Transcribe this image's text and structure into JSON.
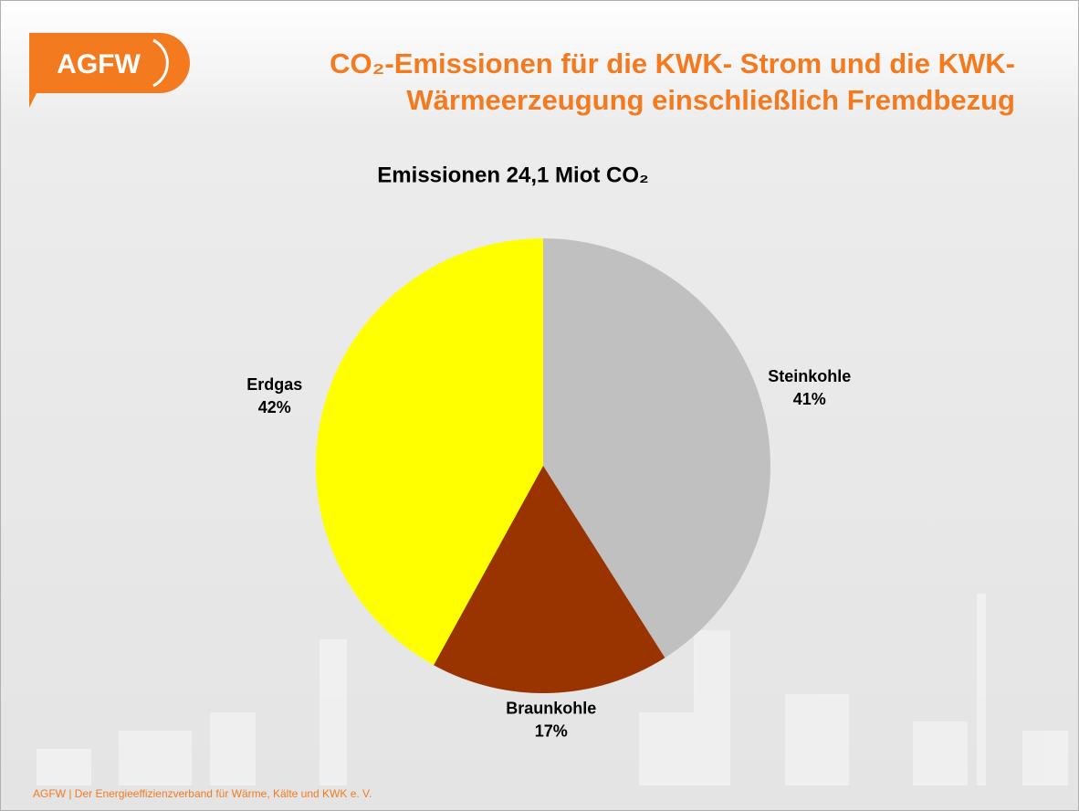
{
  "logo": "AGFW",
  "footer": "AGFW | Der Energieeffizienzverband für Wärme, Kälte und KWK e. V.",
  "chart_data": {
    "type": "pie",
    "title": [
      "CO₂-Emissionen für die KWK- Strom und die KWK-",
      "Wärmeerzeugung einschließlich Fremdbezug"
    ],
    "subtitle": "Emissionen 24,1 Miot CO₂",
    "categories": [
      "Steinkohle",
      "Braunkohle",
      "Erdgas"
    ],
    "values": [
      41,
      17,
      42
    ],
    "value_labels": [
      "41%",
      "17%",
      "42%"
    ],
    "colors": [
      "#c0c0c0",
      "#993300",
      "#ffff00"
    ]
  }
}
